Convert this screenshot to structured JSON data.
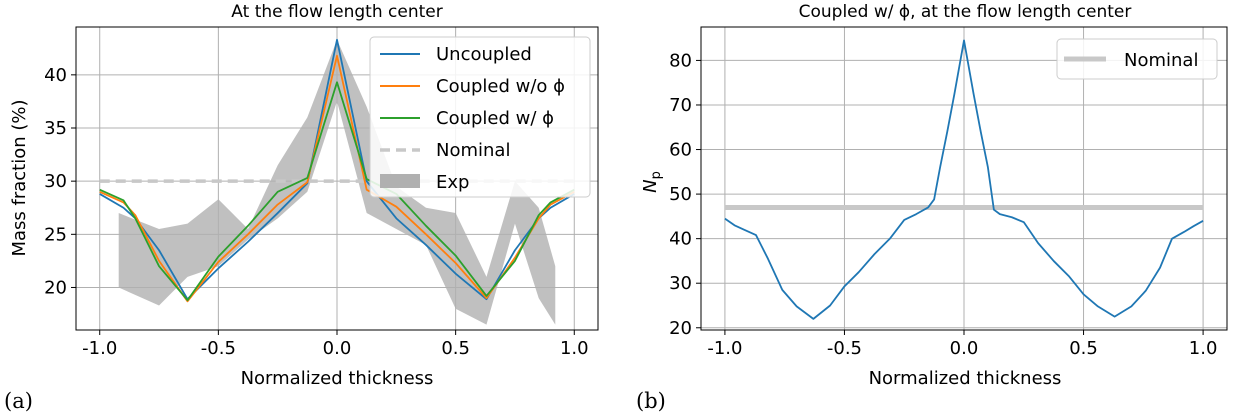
{
  "panel_a_label": "(a)",
  "panel_b_label": "(b)",
  "colors": {
    "uncoupled": "#1f77b4",
    "coupled_wo_phi": "#ff7f0e",
    "coupled_w_phi": "#2ca02c",
    "nominal": "#c8c8c8",
    "exp": "#b0b0b0",
    "grid": "#b0b0b0"
  },
  "chart_data": [
    {
      "type": "line",
      "title": "At the flow length center",
      "xlabel": "Normalized thickness",
      "ylabel": "Mass fraction (%)",
      "xlim": [
        -1.1,
        1.1
      ],
      "ylim": [
        16,
        44.5
      ],
      "xticks": [
        -1.0,
        -0.5,
        0.0,
        0.5,
        1.0
      ],
      "xtick_labels": [
        "-1.0",
        "-0.5",
        "0.0",
        "0.5",
        "1.0"
      ],
      "yticks": [
        20,
        25,
        30,
        35,
        40
      ],
      "ytick_labels": [
        "20",
        "25",
        "30",
        "35",
        "40"
      ],
      "grid": true,
      "legend_position": "top-right",
      "series": [
        {
          "name": "Uncoupled",
          "style": "line",
          "color_key": "uncoupled",
          "x": [
            -1.0,
            -0.9,
            -0.85,
            -0.75,
            -0.63,
            -0.5,
            -0.375,
            -0.25,
            -0.125,
            0.0,
            0.125,
            0.25,
            0.375,
            0.5,
            0.63,
            0.75,
            0.85,
            0.9,
            1.0
          ],
          "y": [
            28.8,
            27.5,
            26.5,
            23.5,
            18.9,
            21.8,
            24.3,
            27.0,
            29.8,
            43.3,
            30.0,
            26.5,
            24.0,
            21.3,
            18.9,
            23.5,
            26.5,
            27.5,
            28.8
          ]
        },
        {
          "name": "Coupled w/o ϕ",
          "style": "line",
          "color_key": "coupled_wo_phi",
          "x": [
            -1.0,
            -0.9,
            -0.85,
            -0.75,
            -0.63,
            -0.5,
            -0.375,
            -0.25,
            -0.125,
            0.0,
            0.125,
            0.25,
            0.375,
            0.5,
            0.63,
            0.75,
            0.85,
            0.9,
            1.0
          ],
          "y": [
            29.0,
            28.0,
            26.8,
            22.5,
            18.7,
            22.4,
            25.0,
            27.8,
            29.9,
            41.8,
            29.2,
            27.6,
            25.0,
            22.3,
            19.0,
            22.8,
            26.5,
            27.8,
            29.0
          ]
        },
        {
          "name": "Coupled w/ ϕ",
          "style": "line",
          "color_key": "coupled_w_phi",
          "x": [
            -1.0,
            -0.9,
            -0.85,
            -0.75,
            -0.63,
            -0.5,
            -0.375,
            -0.25,
            -0.125,
            0.0,
            0.125,
            0.25,
            0.375,
            0.5,
            0.63,
            0.75,
            0.85,
            0.9,
            1.0
          ],
          "y": [
            29.2,
            28.2,
            26.5,
            22.0,
            18.8,
            22.9,
            25.8,
            29.0,
            30.3,
            39.3,
            30.2,
            28.8,
            25.8,
            23.0,
            19.2,
            22.5,
            26.8,
            28.0,
            29.2
          ]
        },
        {
          "name": "Nominal",
          "style": "dashed",
          "color_key": "nominal",
          "x": [
            -1.0,
            1.0
          ],
          "y": [
            30.0,
            30.0
          ]
        },
        {
          "name": "Exp",
          "style": "band",
          "color_key": "exp",
          "x": [
            -0.92,
            -0.75,
            -0.63,
            -0.5,
            -0.375,
            -0.25,
            -0.125,
            0.0,
            0.125,
            0.25,
            0.375,
            0.5,
            0.63,
            0.75,
            0.85,
            0.92
          ],
          "lower": [
            20.0,
            18.3,
            21.0,
            22.0,
            24.5,
            26.5,
            29.0,
            37.5,
            27.0,
            25.5,
            24.0,
            18.0,
            16.5,
            26.0,
            19.0,
            16.5
          ],
          "upper": [
            27.0,
            25.5,
            26.0,
            28.3,
            25.5,
            31.5,
            36.0,
            43.3,
            37.0,
            29.5,
            27.5,
            27.0,
            21.0,
            30.0,
            27.5,
            22.0
          ]
        }
      ]
    },
    {
      "type": "line",
      "title": "Coupled w/ ϕ, at the flow length center",
      "xlabel": "Normalized thickness",
      "ylabel": "N_p",
      "xlim": [
        -1.1,
        1.1
      ],
      "ylim": [
        19.5,
        87.5
      ],
      "xticks": [
        -1.0,
        -0.5,
        0.0,
        0.5,
        1.0
      ],
      "xtick_labels": [
        "-1.0",
        "-0.5",
        "0.0",
        "0.5",
        "1.0"
      ],
      "yticks": [
        20,
        30,
        40,
        50,
        60,
        70,
        80
      ],
      "ytick_labels": [
        "20",
        "30",
        "40",
        "50",
        "60",
        "70",
        "80"
      ],
      "grid": true,
      "legend_position": "top-right",
      "series": [
        {
          "name": "Nominal",
          "style": "thick",
          "color_key": "nominal",
          "x": [
            -1.0,
            1.0
          ],
          "y": [
            47.0,
            47.0
          ]
        },
        {
          "style": "line",
          "color_key": "uncoupled",
          "x": [
            -1.0,
            -0.96,
            -0.92,
            -0.87,
            -0.82,
            -0.76,
            -0.7,
            -0.63,
            -0.56,
            -0.5,
            -0.44,
            -0.375,
            -0.31,
            -0.25,
            -0.2,
            -0.15,
            -0.125,
            -0.1,
            -0.07,
            -0.04,
            0.0,
            0.04,
            0.07,
            0.1,
            0.125,
            0.15,
            0.2,
            0.25,
            0.31,
            0.375,
            0.44,
            0.5,
            0.56,
            0.63,
            0.7,
            0.76,
            0.82,
            0.87,
            0.92,
            0.96,
            1.0
          ],
          "y": [
            44.5,
            43.0,
            42.0,
            40.8,
            35.5,
            28.5,
            24.8,
            22.0,
            25.0,
            29.3,
            32.5,
            36.5,
            40.0,
            44.2,
            45.5,
            47.0,
            48.8,
            56.0,
            64.0,
            72.5,
            84.5,
            72.5,
            64.0,
            56.0,
            46.5,
            45.5,
            44.8,
            43.7,
            39.0,
            35.0,
            31.5,
            27.5,
            24.8,
            22.5,
            24.8,
            28.3,
            33.5,
            40.0,
            41.5,
            42.8,
            44.0
          ]
        }
      ]
    }
  ]
}
